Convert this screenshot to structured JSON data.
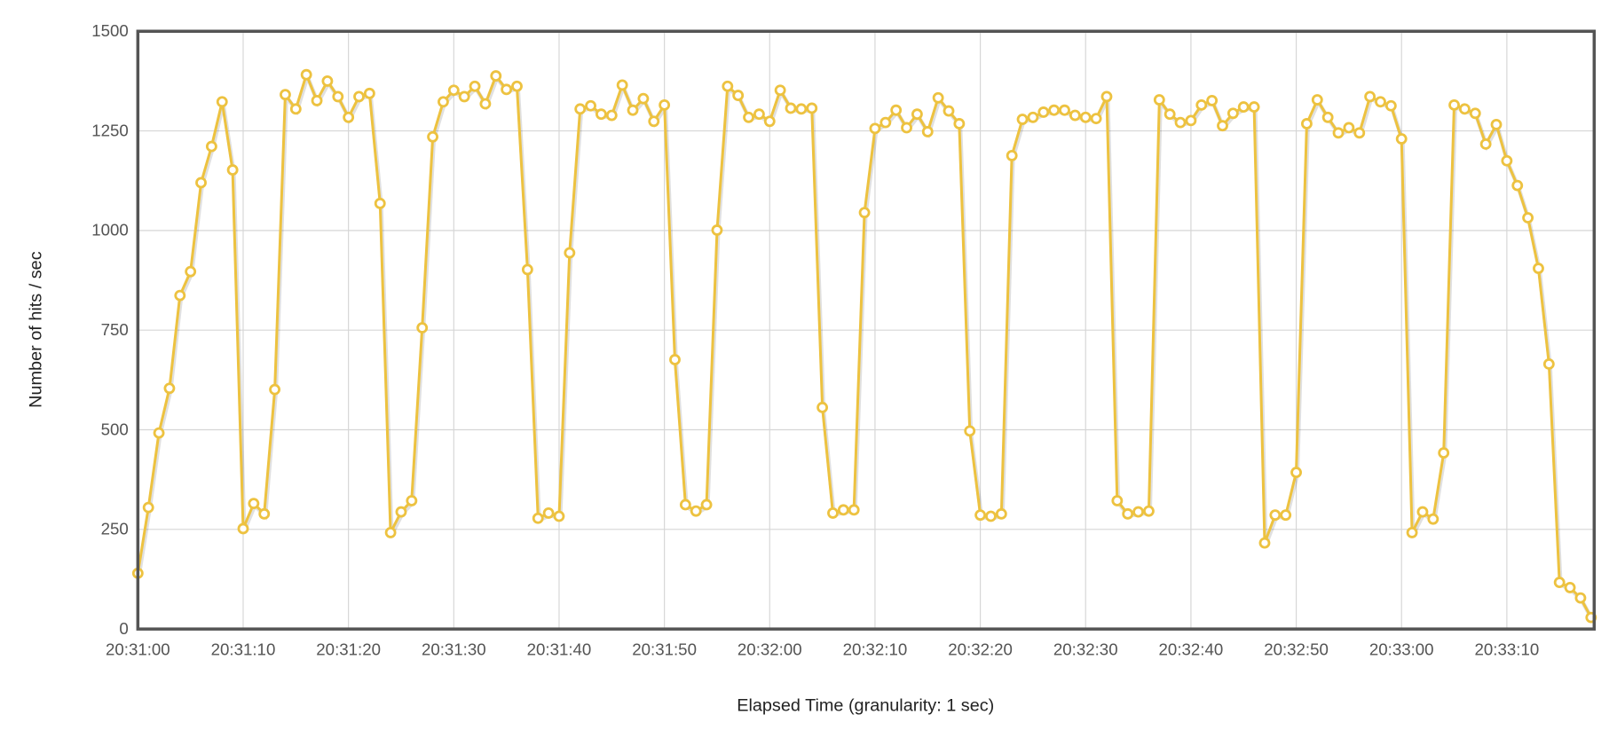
{
  "chart_data": {
    "type": "line",
    "title": "",
    "xlabel": "Elapsed Time (granularity: 1 sec)",
    "ylabel": "Number of hits / sec",
    "ylim": [
      0,
      1500
    ],
    "yticks": [
      "0",
      "250",
      "500",
      "750",
      "1000",
      "1250",
      "1500"
    ],
    "xticks": [
      "20:31:00",
      "20:31:10",
      "20:31:20",
      "20:31:30",
      "20:31:40",
      "20:31:50",
      "20:32:00",
      "20:32:10",
      "20:32:20",
      "20:32:30",
      "20:32:40",
      "20:32:50",
      "20:33:00",
      "20:33:10"
    ],
    "grid": true,
    "legend": "none",
    "series_color": "#EDC240",
    "x": [
      "20:31:00",
      "20:31:01",
      "20:31:02",
      "20:31:03",
      "20:31:04",
      "20:31:05",
      "20:31:06",
      "20:31:07",
      "20:31:08",
      "20:31:09",
      "20:31:10",
      "20:31:11",
      "20:31:12",
      "20:31:13",
      "20:31:14",
      "20:31:15",
      "20:31:16",
      "20:31:17",
      "20:31:18",
      "20:31:19",
      "20:31:20",
      "20:31:21",
      "20:31:22",
      "20:31:23",
      "20:31:24",
      "20:31:25",
      "20:31:26",
      "20:31:27",
      "20:31:28",
      "20:31:29",
      "20:31:30",
      "20:31:31",
      "20:31:32",
      "20:31:33",
      "20:31:34",
      "20:31:35",
      "20:31:36",
      "20:31:37",
      "20:31:38",
      "20:31:39",
      "20:31:40",
      "20:31:41",
      "20:31:42",
      "20:31:43",
      "20:31:44",
      "20:31:45",
      "20:31:46",
      "20:31:47",
      "20:31:48",
      "20:31:49",
      "20:31:50",
      "20:31:51",
      "20:31:52",
      "20:31:53",
      "20:31:54",
      "20:31:55",
      "20:31:56",
      "20:31:57",
      "20:31:58",
      "20:31:59",
      "20:32:00",
      "20:32:01",
      "20:32:02",
      "20:32:03",
      "20:32:04",
      "20:32:05",
      "20:32:06",
      "20:32:07",
      "20:32:08",
      "20:32:09",
      "20:32:10",
      "20:32:11",
      "20:32:12",
      "20:32:13",
      "20:32:14",
      "20:32:15",
      "20:32:16",
      "20:32:17",
      "20:32:18",
      "20:32:19",
      "20:32:20",
      "20:32:21",
      "20:32:22",
      "20:32:23",
      "20:32:24",
      "20:32:25",
      "20:32:26",
      "20:32:27",
      "20:32:28",
      "20:32:29",
      "20:32:30",
      "20:32:31",
      "20:32:32",
      "20:32:33",
      "20:32:34",
      "20:32:35",
      "20:32:36",
      "20:32:37",
      "20:32:38",
      "20:32:39",
      "20:32:40",
      "20:32:41",
      "20:32:42",
      "20:32:43",
      "20:32:44",
      "20:32:45",
      "20:32:46",
      "20:32:47",
      "20:32:48",
      "20:32:49",
      "20:32:50",
      "20:32:51",
      "20:32:52",
      "20:32:53",
      "20:32:54",
      "20:32:55",
      "20:32:56",
      "20:32:57",
      "20:32:58",
      "20:32:59",
      "20:33:00",
      "20:33:01",
      "20:33:02",
      "20:33:03",
      "20:33:04",
      "20:33:05",
      "20:33:06",
      "20:33:07",
      "20:33:08",
      "20:33:09",
      "20:33:10",
      "20:33:11",
      "20:33:12",
      "20:33:13",
      "20:33:14",
      "20:33:15",
      "20:33:16",
      "20:33:17",
      "20:33:18"
    ],
    "values": [
      140,
      305,
      492,
      604,
      837,
      897,
      1120,
      1211,
      1323,
      1152,
      252,
      315,
      289,
      601,
      1341,
      1305,
      1391,
      1326,
      1375,
      1336,
      1284,
      1336,
      1344,
      1068,
      242,
      294,
      322,
      756,
      1235,
      1323,
      1352,
      1336,
      1362,
      1318,
      1388,
      1354,
      1362,
      902,
      278,
      291,
      283,
      944,
      1305,
      1313,
      1292,
      1289,
      1365,
      1302,
      1331,
      1274,
      1315,
      676,
      312,
      296,
      312,
      1001,
      1362,
      1339,
      1284,
      1292,
      1274,
      1352,
      1307,
      1305,
      1307,
      556,
      291,
      299,
      299,
      1045,
      1256,
      1271,
      1302,
      1258,
      1292,
      1248,
      1333,
      1300,
      1268,
      497,
      286,
      283,
      289,
      1188,
      1279,
      1284,
      1297,
      1302,
      1302,
      1289,
      1284,
      1281,
      1336,
      322,
      289,
      294,
      296,
      1328,
      1292,
      1271,
      1276,
      1315,
      1326,
      1263,
      1294,
      1310,
      1310,
      216,
      286,
      286,
      393,
      1268,
      1328,
      1284,
      1245,
      1258,
      1245,
      1336,
      1323,
      1313,
      1230,
      242,
      294,
      276,
      442,
      1315,
      1305,
      1294,
      1217,
      1266,
      1175,
      1113,
      1032,
      905,
      665,
      117,
      104,
      78,
      29
    ]
  }
}
